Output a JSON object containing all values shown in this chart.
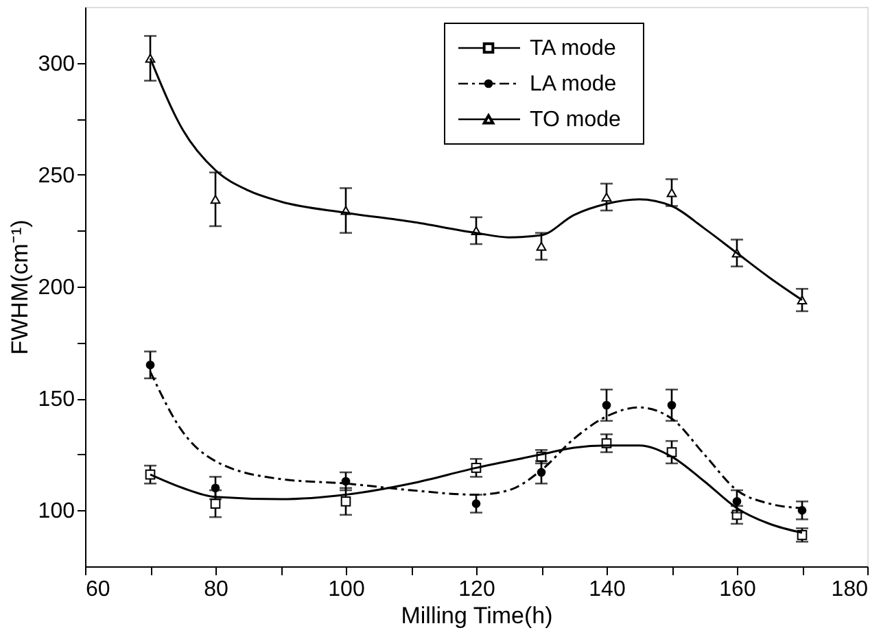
{
  "chart_data": {
    "type": "scatter",
    "xlabel": "Milling Time(h)",
    "ylabel": "FWHM(cm⁻¹)",
    "x": [
      70,
      80,
      100,
      120,
      130,
      140,
      150,
      160,
      170
    ],
    "xlim": [
      60,
      180
    ],
    "xticks": [
      60,
      {
        "value": 70,
        "label": null
      },
      80,
      {
        "value": 90,
        "label": null
      },
      100,
      {
        "value": 110,
        "label": null
      },
      120,
      {
        "value": 130,
        "label": null
      },
      140,
      {
        "value": 150,
        "label": null
      },
      160,
      {
        "value": 170,
        "label": null
      },
      180
    ],
    "ylim": [
      75,
      325
    ],
    "yticks": [
      100,
      {
        "value": 125,
        "label": null
      },
      150,
      {
        "value": 175,
        "label": null
      },
      200,
      {
        "value": 225,
        "label": null
      },
      250,
      {
        "value": 275,
        "label": null
      },
      300
    ],
    "legend": "top right",
    "grid": false,
    "series": [
      {
        "name": "TA mode",
        "marker": "square",
        "color": "#000000",
        "values": [
          116,
          103,
          104,
          119,
          124,
          130,
          126,
          98,
          89
        ],
        "errors": [
          4,
          6,
          6,
          4,
          3,
          4,
          5,
          4,
          3
        ]
      },
      {
        "name": "LA mode",
        "marker": "circle",
        "color": "#000000",
        "values": [
          165,
          110,
          113,
          103,
          117,
          147,
          147,
          104,
          100
        ],
        "errors": [
          6,
          5,
          4,
          4,
          5,
          7,
          7,
          5,
          4
        ]
      },
      {
        "name": "TO mode",
        "marker": "triangle",
        "color": "#000000",
        "values": [
          302,
          239,
          234,
          225,
          218,
          240,
          242,
          215,
          194
        ],
        "errors": [
          10,
          12,
          10,
          6,
          6,
          6,
          6,
          6,
          5
        ]
      },
      {
        "type": "line",
        "line_style": "solid",
        "color": "#000000",
        "x": [
          70,
          75,
          80,
          90,
          100,
          110,
          120,
          130,
          135,
          140,
          145,
          150,
          155,
          160,
          165,
          170
        ],
        "values": [
          116,
          110,
          106,
          105,
          107,
          112,
          119,
          125,
          128,
          129,
          129,
          124,
          113,
          101,
          94,
          90
        ]
      },
      {
        "type": "line",
        "line_style": "dashdot",
        "color": "#000000",
        "x": [
          70,
          75,
          80,
          90,
          100,
          110,
          120,
          125,
          130,
          135,
          140,
          145,
          150,
          155,
          160,
          165,
          170
        ],
        "values": [
          162,
          135,
          122,
          114,
          112,
          109,
          107,
          109,
          118,
          132,
          142,
          146,
          141,
          125,
          109,
          103,
          101
        ]
      },
      {
        "type": "line",
        "line_style": "solid",
        "color": "#000000",
        "x": [
          70,
          75,
          80,
          85,
          90,
          100,
          110,
          120,
          125,
          130,
          135,
          140,
          145,
          150,
          155,
          160,
          165,
          170
        ],
        "values": [
          302,
          270,
          252,
          243,
          238,
          233,
          229,
          224,
          222,
          223,
          232,
          237,
          239,
          236,
          226,
          215,
          204,
          194
        ]
      }
    ]
  }
}
